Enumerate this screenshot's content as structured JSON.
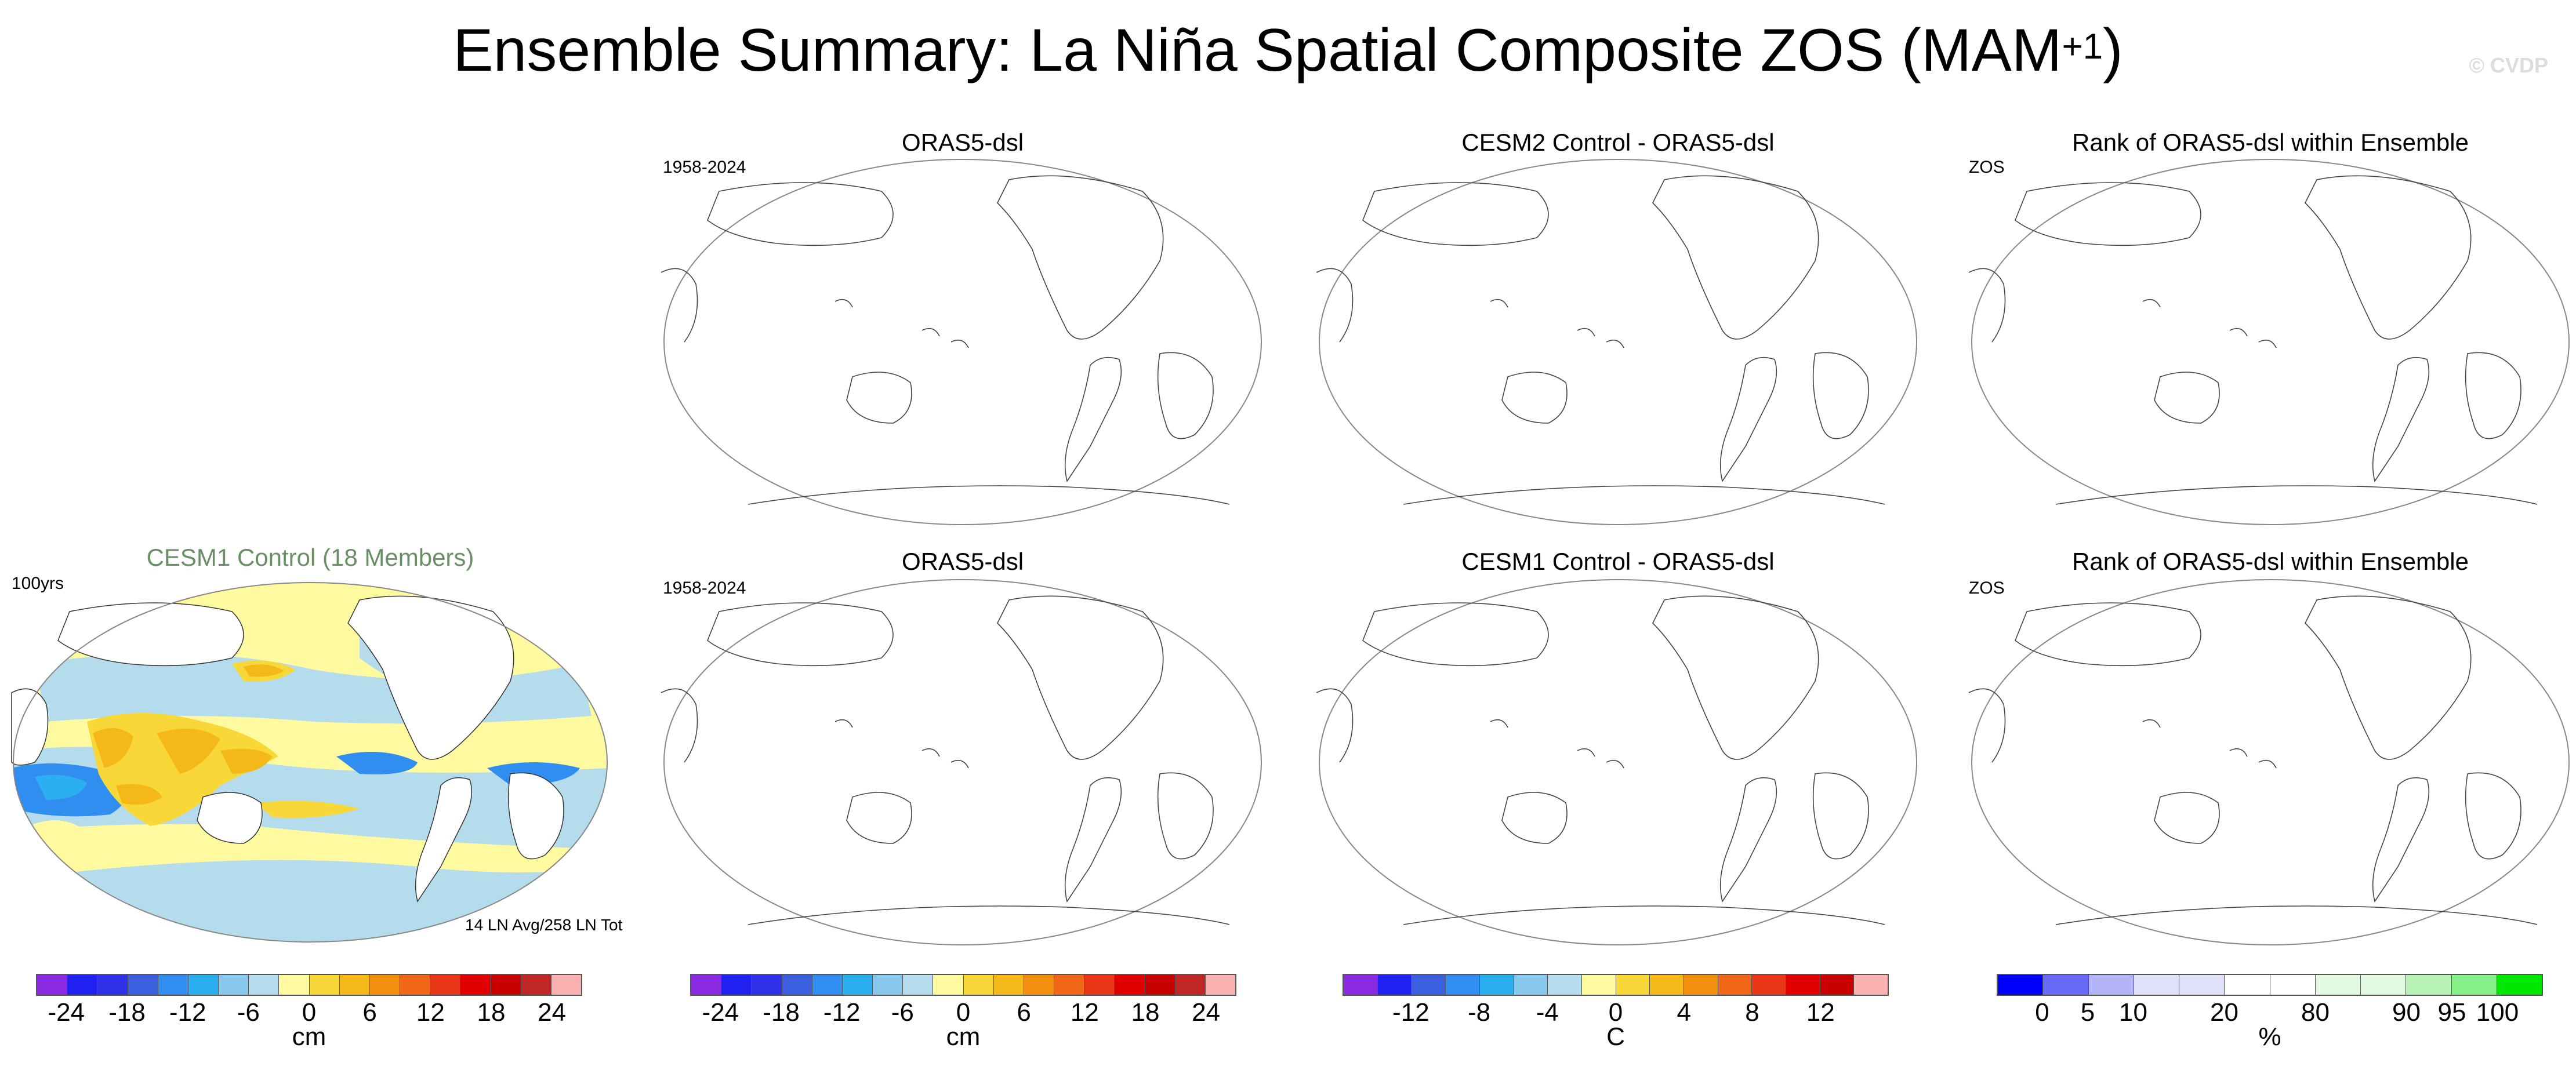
{
  "figure": {
    "title": "Ensemble Summary: La Niña Spatial Composite ZOS (MAM",
    "title_superscript": "+1",
    "title_close": ")",
    "copyright": "© CVDP"
  },
  "left_panel": {
    "title": "CESM1 Control (18 Members)",
    "title_color": "#6a8f66",
    "left_label": "100yrs",
    "bottom_right_label": "14 LN Avg/258 LN Tot"
  },
  "rows": [
    {
      "obs_panel": {
        "title": "ORAS5-dsl",
        "left_label": "1958-2024"
      },
      "diff_panel": {
        "title": "CESM2 Control - ORAS5-dsl"
      },
      "rank_panel": {
        "title": "Rank of ORAS5-dsl within Ensemble",
        "left_label": "ZOS"
      }
    },
    {
      "obs_panel": {
        "title": "ORAS5-dsl",
        "left_label": "1958-2024"
      },
      "diff_panel": {
        "title": "CESM1 Control - ORAS5-dsl"
      },
      "rank_panel": {
        "title": "Rank of ORAS5-dsl within Ensemble",
        "left_label": "ZOS"
      }
    }
  ],
  "colorbars": {
    "cm_a": {
      "unit": "cm",
      "colors": [
        "#8a2be2",
        "#2020f0",
        "#3030e8",
        "#3a60e0",
        "#2f8ef0",
        "#2ab0f0",
        "#88c8ec",
        "#b4dcec",
        "#fffaa0",
        "#f8d838",
        "#f4b818",
        "#f49010",
        "#f06818",
        "#e83818",
        "#e00000",
        "#c80000",
        "#c02828",
        "#f8b0b0"
      ],
      "ticks": [
        "-24",
        "-18",
        "-12",
        "-6",
        "0",
        "6",
        "12",
        "18",
        "24"
      ]
    },
    "cm_b": {
      "unit": "cm",
      "colors": [
        "#8a2be2",
        "#2020f0",
        "#3030e8",
        "#3a60e0",
        "#2f8ef0",
        "#2ab0f0",
        "#88c8ec",
        "#b4dcec",
        "#fffaa0",
        "#f8d838",
        "#f4b818",
        "#f49010",
        "#f06818",
        "#e83818",
        "#e00000",
        "#c80000",
        "#c02828",
        "#f8b0b0"
      ],
      "ticks": [
        "-24",
        "-18",
        "-12",
        "-6",
        "0",
        "6",
        "12",
        "18",
        "24"
      ]
    },
    "c": {
      "unit": "C",
      "colors": [
        "#8a2be2",
        "#2020f0",
        "#3a60e0",
        "#2f8ef0",
        "#2ab0f0",
        "#88c8ec",
        "#b4dcec",
        "#fffaa0",
        "#f8d838",
        "#f4b818",
        "#f49010",
        "#f06818",
        "#e83818",
        "#e00000",
        "#c80000",
        "#f8b0b0"
      ],
      "ticks": [
        "-12",
        "-8",
        "-4",
        "0",
        "4",
        "8",
        "12"
      ]
    },
    "pct": {
      "unit": "%",
      "colors": [
        "#0000ff",
        "#6a6af8",
        "#b4b4f8",
        "#e0e0f8",
        "#e0e0f8",
        "#ffffff",
        "#ffffff",
        "#e2fae2",
        "#e2fae2",
        "#b8f4b8",
        "#88f088",
        "#00e800"
      ],
      "ticks": [
        "0",
        "5",
        "10",
        "20",
        "80",
        "90",
        "95",
        "100"
      ]
    }
  }
}
